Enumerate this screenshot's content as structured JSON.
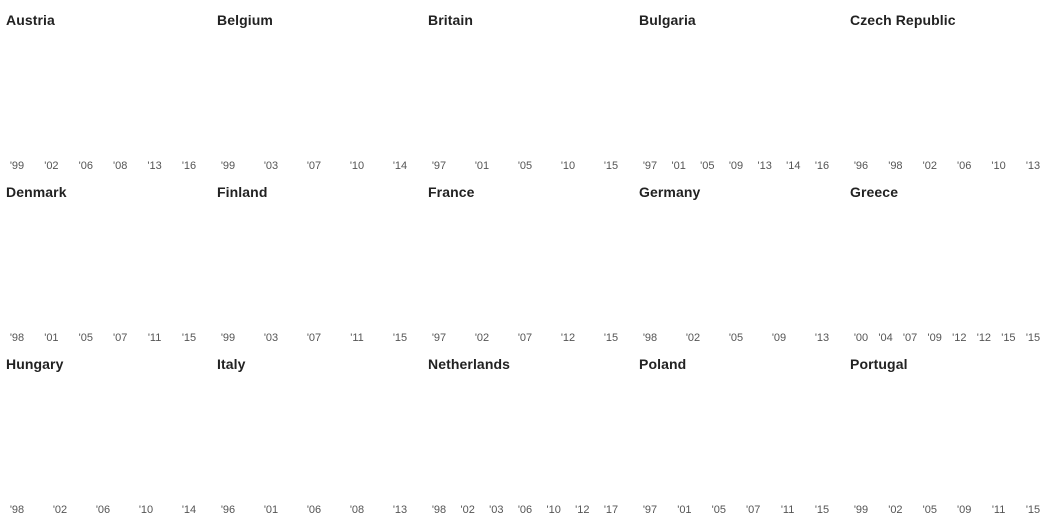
{
  "chart_data": [
    {
      "type": "line",
      "title": "Austria",
      "x": [
        "'99",
        "'02",
        "'06",
        "'08",
        "'13",
        "'16"
      ],
      "series": []
    },
    {
      "type": "line",
      "title": "Belgium",
      "x": [
        "'99",
        "'03",
        "'07",
        "'10",
        "'14"
      ],
      "series": []
    },
    {
      "type": "line",
      "title": "Britain",
      "x": [
        "'97",
        "'01",
        "'05",
        "'10",
        "'15"
      ],
      "series": []
    },
    {
      "type": "line",
      "title": "Bulgaria",
      "x": [
        "'97",
        "'01",
        "'05",
        "'09",
        "'13",
        "'14",
        "'16"
      ],
      "series": []
    },
    {
      "type": "line",
      "title": "Czech Republic",
      "x": [
        "'96",
        "'98",
        "'02",
        "'06",
        "'10",
        "'13"
      ],
      "series": []
    },
    {
      "type": "line",
      "title": "Denmark",
      "x": [
        "'98",
        "'01",
        "'05",
        "'07",
        "'11",
        "'15"
      ],
      "series": []
    },
    {
      "type": "line",
      "title": "Finland",
      "x": [
        "'99",
        "'03",
        "'07",
        "'11",
        "'15"
      ],
      "series": []
    },
    {
      "type": "line",
      "title": "France",
      "x": [
        "'97",
        "'02",
        "'07",
        "'12",
        "'15"
      ],
      "series": []
    },
    {
      "type": "line",
      "title": "Germany",
      "x": [
        "'98",
        "'02",
        "'05",
        "'09",
        "'13"
      ],
      "series": []
    },
    {
      "type": "line",
      "title": "Greece",
      "x": [
        "'00",
        "'04",
        "'07",
        "'09",
        "'12",
        "'12",
        "'15",
        "'15"
      ],
      "series": []
    },
    {
      "type": "line",
      "title": "Hungary",
      "x": [
        "'98",
        "'02",
        "'06",
        "'10",
        "'14"
      ],
      "series": []
    },
    {
      "type": "line",
      "title": "Italy",
      "x": [
        "'96",
        "'01",
        "'06",
        "'08",
        "'13"
      ],
      "series": []
    },
    {
      "type": "line",
      "title": "Netherlands",
      "x": [
        "'98",
        "'02",
        "'03",
        "'06",
        "'10",
        "'12",
        "'17"
      ],
      "series": []
    },
    {
      "type": "line",
      "title": "Poland",
      "x": [
        "'97",
        "'01",
        "'05",
        "'07",
        "'11",
        "'15"
      ],
      "series": []
    },
    {
      "type": "line",
      "title": "Portugal",
      "x": [
        "'99",
        "'02",
        "'05",
        "'09",
        "'11",
        "'15"
      ],
      "series": []
    }
  ]
}
